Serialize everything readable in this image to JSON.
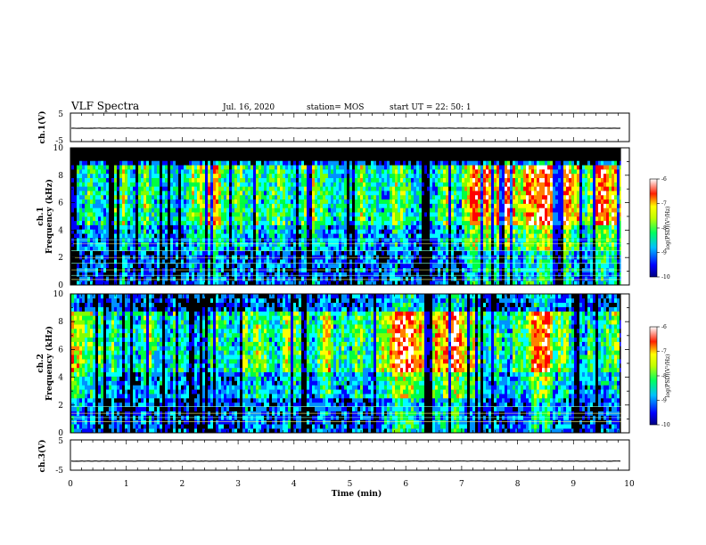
{
  "header": {
    "title": "VLF Spectra",
    "date": "Jul. 16, 2020",
    "station": "station= MOS",
    "start": "start  UT =  22: 50: 1"
  },
  "chart_data": [
    {
      "type": "line",
      "name": "ch1-waveform",
      "ylabel": "ch.1(V)",
      "ylim": [
        -5,
        5
      ],
      "yticks": [
        "5",
        "-5"
      ],
      "x": [
        0,
        10
      ],
      "values": [
        -0.3,
        -0.3
      ],
      "xlim": [
        0,
        10
      ]
    },
    {
      "type": "heatmap",
      "name": "ch1-spectrogram",
      "ylabel": "ch.1",
      "ylabel2": "Frequency (kHz)",
      "ylim": [
        0,
        10
      ],
      "yticks": [
        "0",
        "2",
        "4",
        "6",
        "8",
        "10"
      ],
      "xlim": [
        0,
        10
      ],
      "interference_lines_khz": [
        0.4,
        0.7,
        1.1,
        1.6,
        2.0,
        2.5,
        3.0,
        3.3
      ],
      "colorbar": {
        "label": "log(PSD)(V²/Hz)",
        "range": [
          -10,
          -6
        ],
        "ticks": [
          "-6",
          "-7",
          "-8",
          "-9",
          "-10"
        ]
      }
    },
    {
      "type": "heatmap",
      "name": "ch2-spectrogram",
      "ylabel": "ch.2",
      "ylabel2": "Frequency (kHz)",
      "ylim": [
        0,
        10
      ],
      "yticks": [
        "0",
        "2",
        "4",
        "6",
        "8",
        "10"
      ],
      "xlim": [
        0,
        10
      ],
      "interference_lines_khz": [
        0.8,
        1.1,
        1.4,
        1.9
      ],
      "colorbar": {
        "label": "log(PSD)(V²/Hz)",
        "range": [
          -10,
          -6
        ],
        "ticks": [
          "-6",
          "-7",
          "-8",
          "-9",
          "-10"
        ]
      }
    },
    {
      "type": "line",
      "name": "ch3-waveform",
      "ylabel": "ch.3(V)",
      "ylim": [
        -5,
        5
      ],
      "yticks": [
        "5",
        "-5"
      ],
      "x": [
        0,
        10
      ],
      "values": [
        -2.0,
        -2.0
      ],
      "xlim": [
        0,
        10
      ]
    }
  ],
  "xaxis": {
    "label": "Time  (min)",
    "ticks": [
      "0",
      "1",
      "2",
      "3",
      "4",
      "5",
      "6",
      "7",
      "8",
      "9",
      "10"
    ],
    "data_end_min": 9.85
  },
  "colors": {
    "frame": "#000000",
    "colormap": [
      "#00007a",
      "#0000ff",
      "#0090ff",
      "#00ffff",
      "#00ff40",
      "#80ff00",
      "#ffff00",
      "#ff8000",
      "#ff0000",
      "#ffffff"
    ]
  }
}
